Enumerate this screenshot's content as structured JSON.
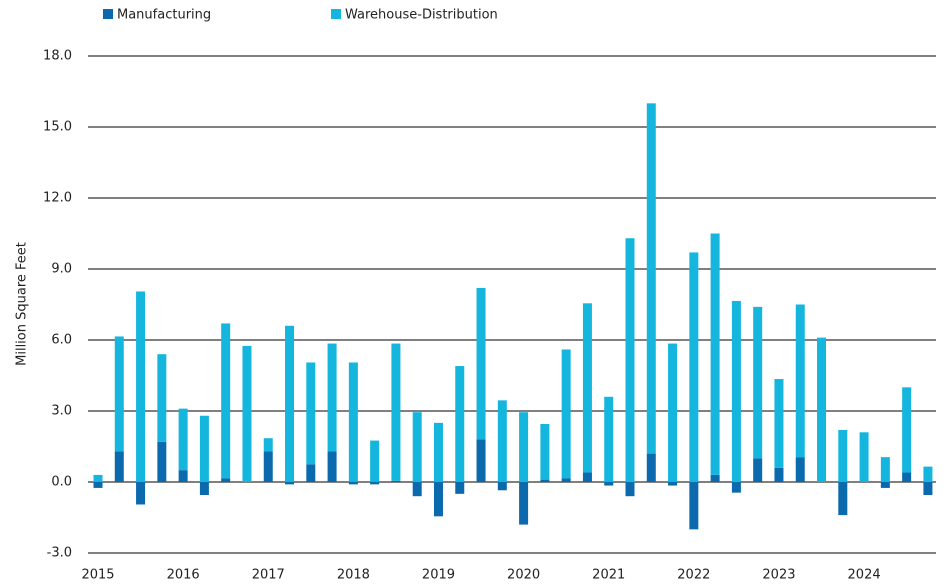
{
  "chart_data": {
    "type": "stacked_bar",
    "y_label": "Million Square Feet",
    "categories": [
      "2015",
      null,
      null,
      null,
      "2016",
      null,
      null,
      null,
      "2017",
      null,
      null,
      null,
      "2018",
      null,
      null,
      null,
      "2019",
      null,
      null,
      null,
      "2020",
      null,
      null,
      null,
      "2021",
      null,
      null,
      null,
      "2022",
      null,
      null,
      null,
      "2023",
      null,
      null,
      null,
      "2024",
      null,
      null,
      null
    ],
    "series": [
      {
        "name": "Manufacturing",
        "color": "#0b69ad",
        "values": [
          -0.25,
          1.3,
          -0.95,
          1.7,
          0.5,
          -0.55,
          0.15,
          0,
          1.3,
          -0.1,
          0.75,
          1.3,
          -0.1,
          -0.1,
          0.05,
          -0.6,
          -1.45,
          -0.5,
          1.8,
          -0.35,
          -1.8,
          0.1,
          0.15,
          0.4,
          -0.15,
          -0.6,
          1.2,
          -0.15,
          -2.0,
          0.3,
          -0.45,
          1.0,
          0.6,
          1.05,
          0,
          -1.4,
          0,
          -0.25,
          0.4,
          -0.55
        ]
      },
      {
        "name": "Warehouse-Distribution",
        "color": "#14b6dd",
        "values": [
          0.3,
          4.85,
          8.05,
          3.7,
          2.6,
          2.8,
          6.55,
          5.75,
          0.55,
          6.6,
          4.3,
          4.55,
          5.05,
          1.75,
          5.8,
          2.95,
          2.5,
          4.9,
          6.4,
          3.45,
          2.95,
          2.35,
          5.45,
          7.15,
          3.6,
          10.3,
          14.8,
          5.85,
          9.7,
          10.2,
          7.65,
          6.4,
          3.75,
          6.45,
          6.1,
          2.2,
          2.1,
          1.05,
          3.6,
          0.65
        ]
      }
    ],
    "ylim": [
      -3,
      18
    ],
    "yticks": [
      {
        "value": -3,
        "label": "-3.0"
      },
      {
        "value": 0,
        "label": "0.0"
      },
      {
        "value": 3,
        "label": "3.0"
      },
      {
        "value": 6,
        "label": "6.0"
      },
      {
        "value": 9,
        "label": "9.0"
      },
      {
        "value": 12,
        "label": "12.0"
      },
      {
        "value": 15,
        "label": "15.0"
      },
      {
        "value": 18,
        "label": "18.0"
      }
    ],
    "grid": true
  }
}
